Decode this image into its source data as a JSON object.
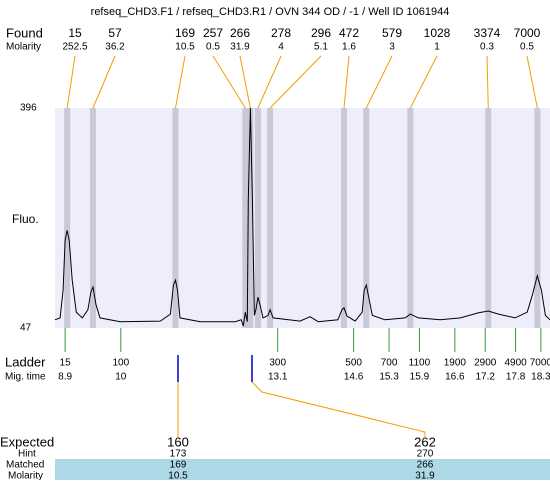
{
  "chart_data": {
    "type": "electropherogram",
    "title": "refseq_CHD3.F1 / refseq_CHD3.R1 / OVN 344 OD / -1 / Well ID 1061944",
    "found_label": "Found",
    "molarity_label": "Molarity",
    "y_label": "Fluo.",
    "ladder_label": "Ladder",
    "migtime_label": "Mig. time",
    "xlim": [
      8.7,
      18.48
    ],
    "ylim": [
      47,
      396
    ],
    "yticks": [
      47,
      396
    ],
    "peaks": {
      "sizes": [
        15,
        57,
        169,
        257,
        266,
        278,
        296,
        472,
        579,
        1028,
        3374,
        7000
      ],
      "molarities": [
        252.5,
        36.2,
        10.5,
        0.5,
        31.9,
        4,
        5.1,
        1.6,
        3,
        1,
        0.3,
        0.5
      ],
      "x": [
        8.94,
        9.45,
        11.08,
        12.46,
        12.56,
        12.71,
        12.95,
        14.41,
        14.85,
        15.72,
        17.26,
        18.23
      ]
    },
    "ladder": {
      "sizes": [
        15,
        100,
        300,
        500,
        700,
        1100,
        1900,
        2900,
        4900,
        7000
      ],
      "x": [
        8.9,
        10,
        13.1,
        14.6,
        15.3,
        15.9,
        16.6,
        17.2,
        17.8,
        18.3
      ]
    },
    "trace": {
      "x": [
        8.7,
        8.8,
        8.86,
        8.9,
        8.94,
        8.98,
        9.04,
        9.12,
        9.24,
        9.35,
        9.41,
        9.45,
        9.51,
        9.59,
        9.99,
        10.78,
        10.98,
        11.04,
        11.08,
        11.12,
        11.17,
        11.57,
        12.26,
        12.38,
        12.42,
        12.46,
        12.5,
        12.52,
        12.56,
        12.6,
        12.64,
        12.67,
        12.71,
        12.75,
        12.81,
        12.91,
        12.95,
        13.01,
        13.54,
        13.74,
        13.9,
        14.29,
        14.37,
        14.41,
        14.47,
        14.63,
        14.77,
        14.81,
        14.85,
        14.89,
        14.97,
        15.22,
        15.62,
        15.72,
        15.88,
        16.31,
        16.71,
        17.06,
        17.26,
        17.46,
        17.79,
        18.03,
        18.13,
        18.23,
        18.31,
        18.39,
        18.48
      ],
      "values": [
        60,
        63,
        107,
        186,
        202,
        186,
        123,
        72,
        63,
        76,
        104,
        112,
        84,
        63,
        57,
        58,
        69,
        115,
        123,
        107,
        63,
        57,
        57,
        60,
        50,
        72,
        57,
        250,
        396,
        250,
        67,
        76,
        96,
        84,
        63,
        67,
        76,
        63,
        58,
        65,
        57,
        60,
        76,
        79,
        66,
        58,
        72,
        107,
        115,
        99,
        67,
        60,
        63,
        69,
        63,
        60,
        63,
        71,
        74,
        69,
        63,
        72,
        99,
        130,
        107,
        67,
        60
      ]
    },
    "expected_table": {
      "row_labels": [
        "Expected",
        "Hint",
        "Matched",
        "Molarity"
      ],
      "expected": [
        160,
        262
      ],
      "hint": [
        173,
        270
      ],
      "matched": [
        169,
        266
      ],
      "molarity": [
        10.5,
        31.9
      ]
    }
  }
}
